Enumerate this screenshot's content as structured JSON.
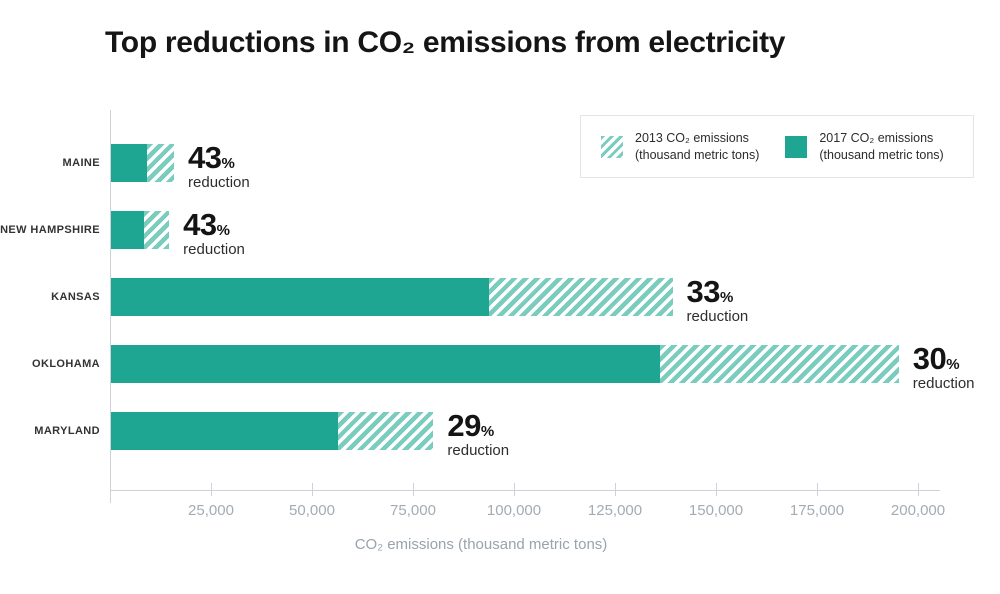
{
  "labels": {
    "percent_sign": "%",
    "reduction_word": "reduction"
  },
  "legend": {
    "items": [
      {
        "swatch": "hatched",
        "line1": "2013 CO₂ emissions",
        "line2": "(thousand metric tons)"
      },
      {
        "swatch": "solid",
        "line1": "2017 CO₂ emissions",
        "line2": "(thousand metric tons)"
      }
    ]
  },
  "colors": {
    "background": "#ffffff",
    "teal": "#1ea693",
    "stripe": "#7accbe",
    "axis": "#ccd2d7",
    "tick_text": "#a4abb3",
    "axis_title_text": "#9aa2ab",
    "title_text": "#151515",
    "label_text": "#333333",
    "pct_text": "#141414",
    "legend_border": "#e3e4e6"
  },
  "chart_data": {
    "type": "bar",
    "orientation": "horizontal",
    "title": "Top reductions in CO₂ emissions from electricity",
    "xlabel": "CO₂ emissions (thousand metric tons)",
    "xlim": [
      0,
      200000
    ],
    "grid": false,
    "legend_position": "top-right",
    "categories": [
      "MAINE",
      "NEW HAMPSHIRE",
      "KANSAS",
      "OKLOHAMA",
      "MARYLAND"
    ],
    "series": [
      {
        "name": "2013 CO₂ emissions (thousand metric tons)",
        "style": "hatched",
        "values": [
          15600,
          14400,
          139000,
          195000,
          79800
        ]
      },
      {
        "name": "2017 CO₂ emissions (thousand metric tons)",
        "style": "solid",
        "values": [
          8900,
          8200,
          93500,
          136000,
          56300
        ]
      }
    ],
    "reduction_labels": [
      "43",
      "43",
      "33",
      "30",
      "29"
    ],
    "xtick_values": [
      25000,
      50000,
      75000,
      100000,
      125000,
      150000,
      175000,
      200000
    ],
    "xtick_labels": [
      "25,000",
      "50,000",
      "75,000",
      "100,000",
      "125,000",
      "150,000",
      "175,000",
      "200,000"
    ]
  }
}
